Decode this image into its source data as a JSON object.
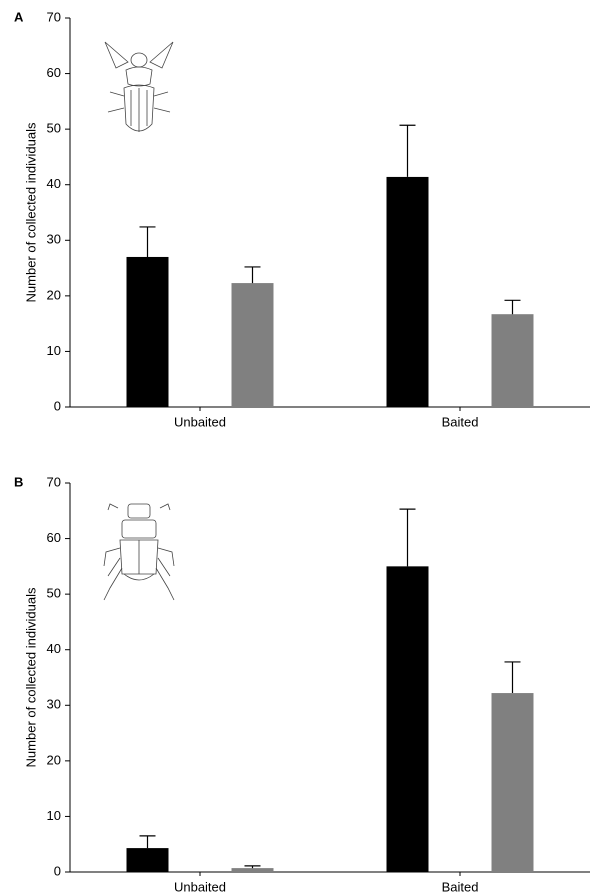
{
  "chart_data": [
    {
      "type": "bar",
      "panel_label": "A",
      "ylabel": "Number of collected individuals",
      "categories": [
        "Unbaited",
        "Baited"
      ],
      "series": [
        {
          "color": "#000000",
          "values": [
            27.0,
            41.4
          ],
          "errors": [
            5.4,
            9.3
          ]
        },
        {
          "color": "#808080",
          "values": [
            22.3,
            16.7
          ],
          "errors": [
            2.9,
            2.5
          ]
        }
      ],
      "ylim": [
        0,
        70
      ],
      "yticks": [
        0,
        10,
        20,
        30,
        40,
        50,
        60,
        70
      ]
    },
    {
      "type": "bar",
      "panel_label": "B",
      "ylabel": "Number of collected individuals",
      "categories": [
        "Unbaited",
        "Baited"
      ],
      "series": [
        {
          "color": "#000000",
          "values": [
            4.3,
            55.0
          ],
          "errors": [
            2.2,
            10.3
          ]
        },
        {
          "color": "#808080",
          "values": [
            0.7,
            32.2
          ],
          "errors": [
            0.4,
            5.6
          ]
        }
      ],
      "ylim": [
        0,
        70
      ],
      "yticks": [
        0,
        10,
        20,
        30,
        40,
        50,
        60,
        70
      ]
    }
  ]
}
